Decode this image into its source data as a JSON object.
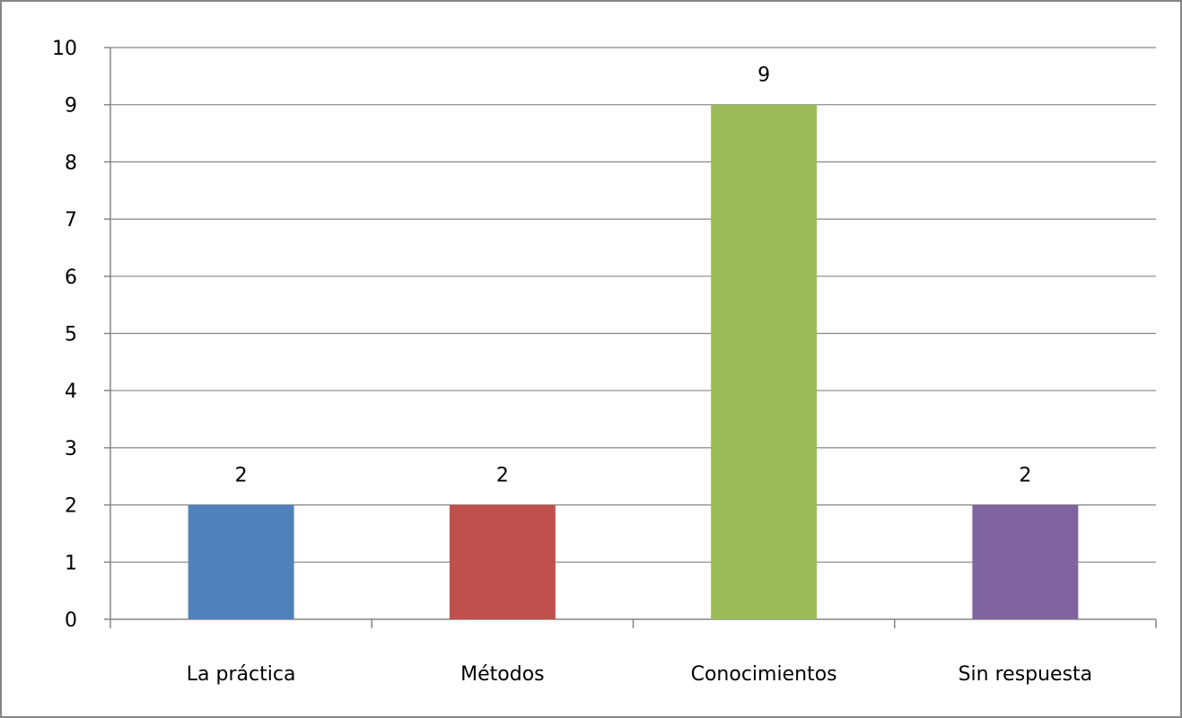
{
  "chart_data": {
    "type": "bar",
    "categories": [
      "La práctica",
      "Métodos",
      "Conocimientos",
      "Sin respuesta"
    ],
    "values": [
      2,
      2,
      9,
      2
    ],
    "data_labels": [
      "2",
      "2",
      "9",
      "2"
    ],
    "colors": [
      "#4F81BD",
      "#C0504D",
      "#9BBB59",
      "#8064A2"
    ],
    "ylim": [
      0,
      10
    ],
    "yticks": [
      "0",
      "1",
      "2",
      "3",
      "4",
      "5",
      "6",
      "7",
      "8",
      "9",
      "10"
    ],
    "grid": true,
    "legend": "none",
    "title": "",
    "xlabel": "",
    "ylabel": ""
  }
}
